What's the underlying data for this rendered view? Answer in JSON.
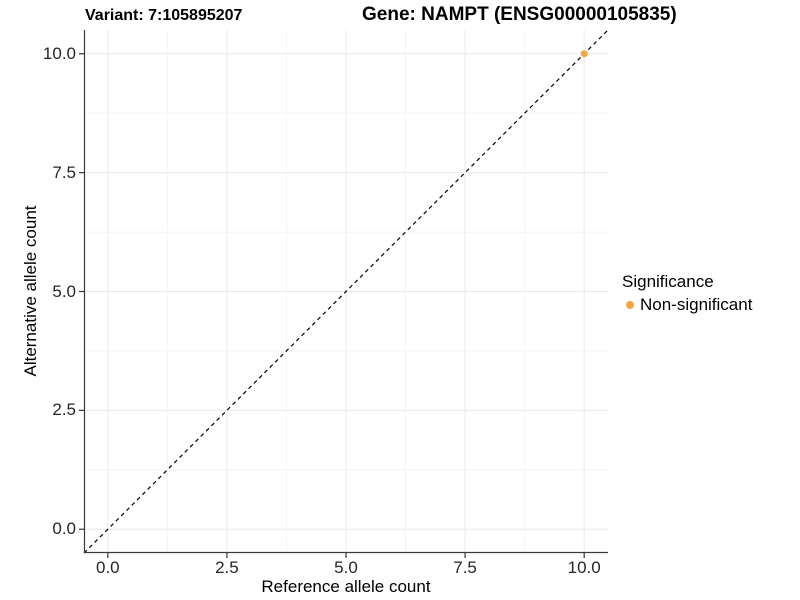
{
  "chart_data": {
    "type": "scatter",
    "title_left": "Variant: 7:105895207",
    "title_right": "Gene: NAMPT (ENSG00000105835)",
    "xlabel": "Reference allele count",
    "ylabel": "Alternative allele count",
    "xlim": [
      -0.5,
      10.5
    ],
    "ylim": [
      -0.5,
      10.5
    ],
    "x_ticks": [
      0,
      2.5,
      5,
      7.5,
      10
    ],
    "x_tick_labels": [
      "0.0",
      "2.5",
      "5.0",
      "7.5",
      "10.0"
    ],
    "y_ticks": [
      0,
      2.5,
      5,
      7.5,
      10
    ],
    "y_tick_labels": [
      "0.0",
      "2.5",
      "5.0",
      "7.5",
      "10.0"
    ],
    "x_minor_ticks": [
      1.25,
      3.75,
      6.25,
      8.75
    ],
    "y_minor_ticks": [
      1.25,
      3.75,
      6.25,
      8.75
    ],
    "grid": true,
    "legend_position": "right",
    "points": [
      {
        "x": 10,
        "y": 10,
        "series": "Non-significant"
      }
    ],
    "reference_line": {
      "slope": 1,
      "intercept": 0,
      "style": "dashed",
      "color": "#000000"
    },
    "legend": {
      "title": "Significance",
      "items": [
        {
          "label": "Non-significant",
          "color": "#F7A346"
        }
      ]
    },
    "colors": {
      "point": "#F7A346",
      "grid_major": "#e9e9e9",
      "grid_minor": "#f5f5f5",
      "axis_line": "#3a3a3a",
      "tick_mark": "#333333"
    }
  }
}
